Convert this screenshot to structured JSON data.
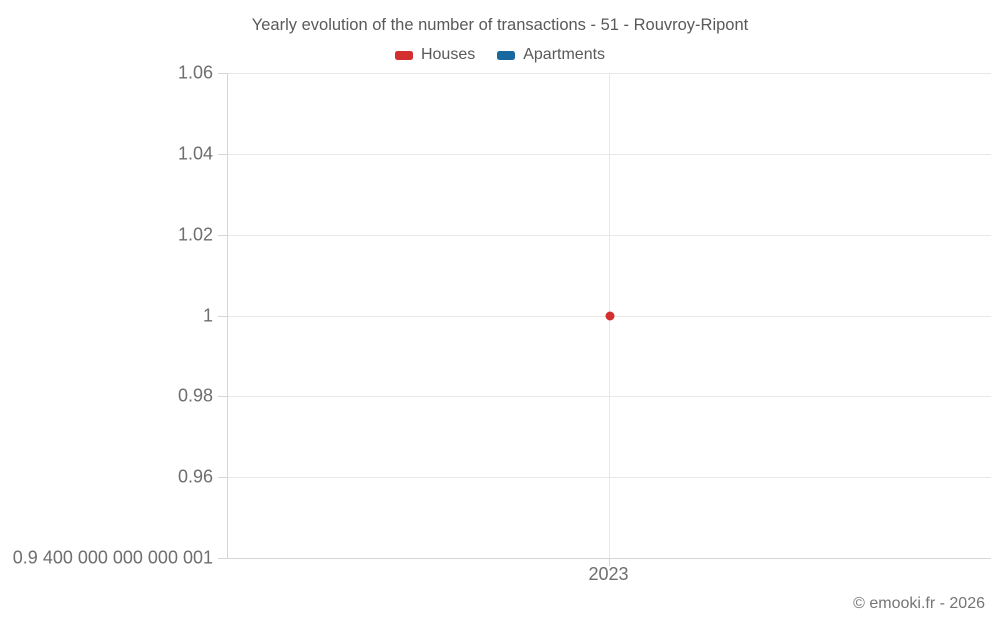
{
  "title": "Yearly evolution of the number of transactions - 51 - Rouvroy-Ripont",
  "footer": "© emooki.fr - 2026",
  "colors": {
    "houses": "#d32f2f",
    "apartments": "#17699f"
  },
  "chart_data": {
    "type": "scatter",
    "title": "Yearly evolution of the number of transactions - 51 - Rouvroy-Ripont",
    "x_categories": [
      "2023"
    ],
    "series": [
      {
        "name": "Houses",
        "color": "#d32f2f",
        "points": [
          {
            "x": "2023",
            "y": 1
          }
        ]
      },
      {
        "name": "Apartments",
        "color": "#17699f",
        "points": []
      }
    ],
    "ylim": [
      0.9400000000000001,
      1.06
    ],
    "y_ticks": [
      {
        "value": 1.06,
        "label": "1.06"
      },
      {
        "value": 1.04,
        "label": "1.04"
      },
      {
        "value": 1.02,
        "label": "1.02"
      },
      {
        "value": 1.0,
        "label": "1"
      },
      {
        "value": 0.98,
        "label": "0.98"
      },
      {
        "value": 0.96,
        "label": "0.96"
      },
      {
        "value": 0.9400000000000001,
        "label": "0.9 400 000 000 000 001"
      }
    ],
    "grid": "horizontal gridlines on, one vertical gridline per x category",
    "legend_position": "top-center"
  }
}
